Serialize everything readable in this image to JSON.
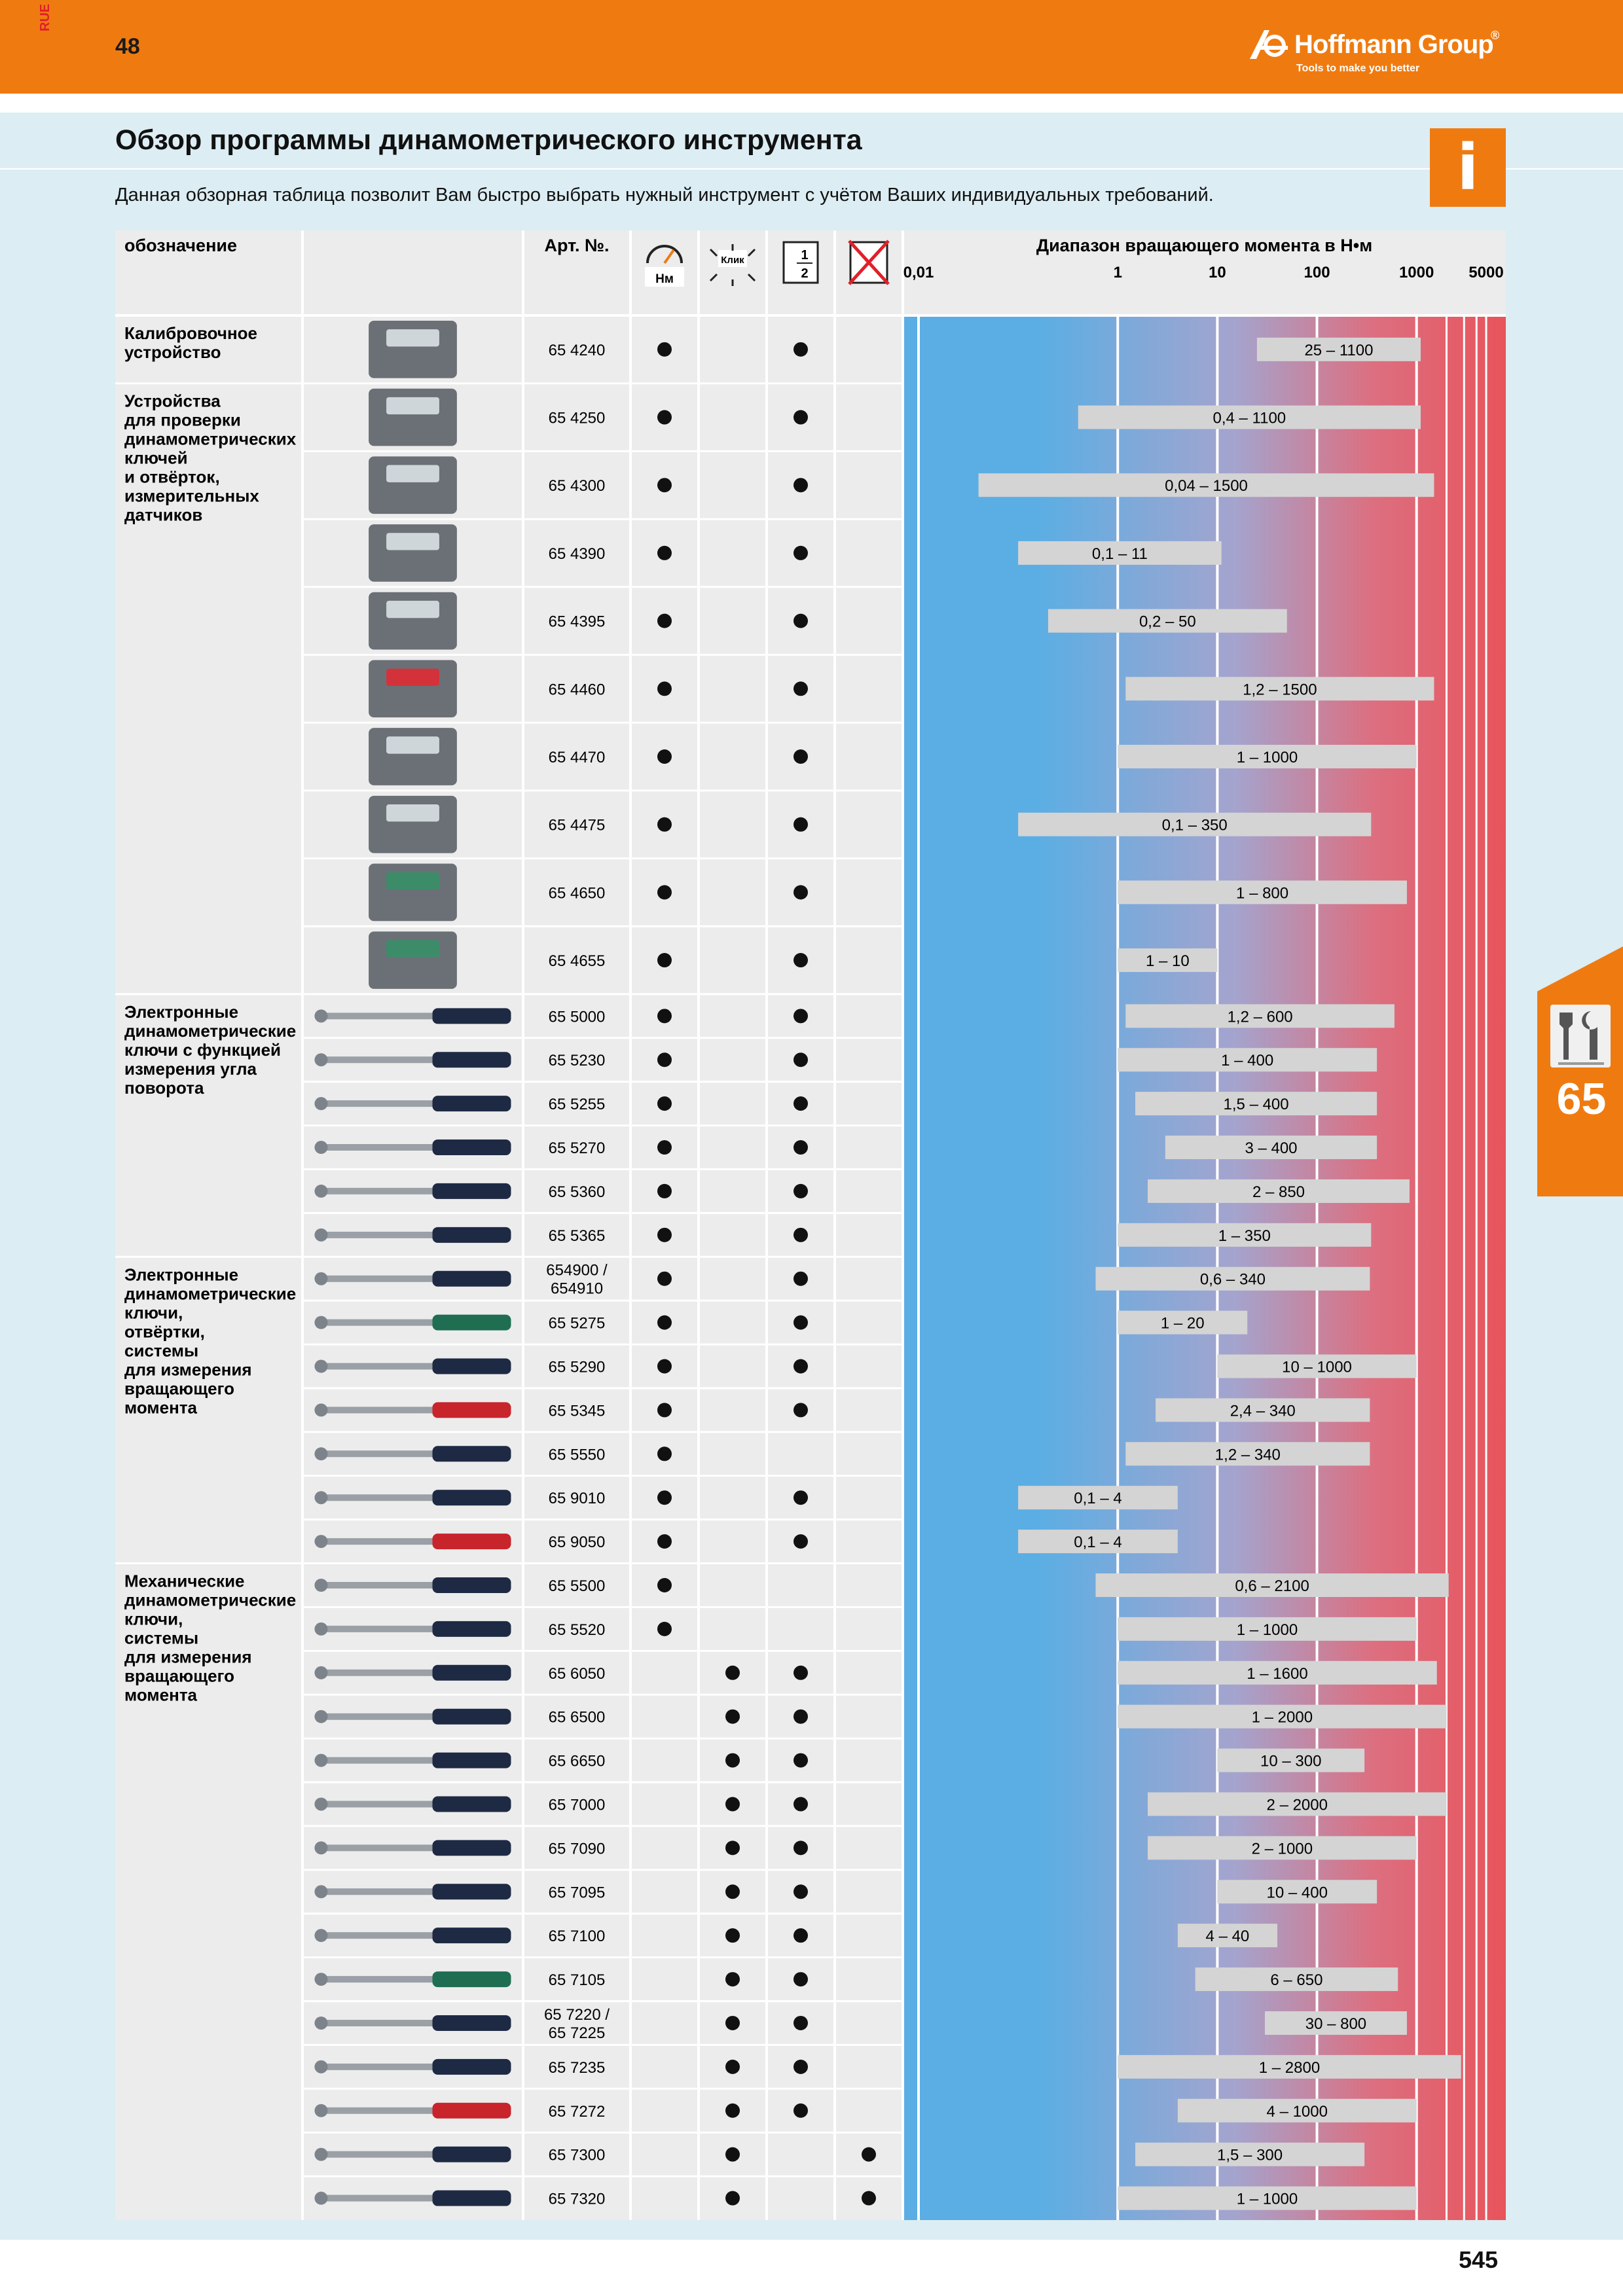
{
  "header": {
    "lang": "RUE",
    "page_left": "48",
    "brand": "Hoffmann Group",
    "brand_mark": "®",
    "tagline": "Tools to make you better"
  },
  "title": "Обзор программы динамометрического инструмента",
  "subtitle": "Данная обзорная таблица позволит Вам быстро выбрать нужный инструмент с учётом Ваших индивидуальных требований.",
  "info_icon": "i",
  "side_tab": {
    "number": "65",
    "icon": "wrench-screwdriver-icon"
  },
  "page_number": "545",
  "colors": {
    "orange": "#ef7b10",
    "band": "#dcedf3",
    "blue": "#5aaee4",
    "red": "#e8545b",
    "bar": "#d4d4d4"
  },
  "table": {
    "headers": {
      "name": "обозначение",
      "art": "Арт. №.",
      "icon_nm": "Нм",
      "icon_click": "Клик",
      "icon_half_top": "1",
      "icon_half_bottom": "2",
      "range_title": "Диапазон вращающего момента в Н•м",
      "scale": [
        "0,01",
        "1",
        "10",
        "100",
        "1000",
        "5000"
      ]
    },
    "icons": [
      "gauge-icon",
      "click-icon",
      "half-icon",
      "no-ratchet-icon"
    ],
    "groups": [
      {
        "label": [
          "Калибровочное",
          "устройство"
        ],
        "first": 0,
        "count": 1
      },
      {
        "label": [
          "Устройства",
          "для проверки",
          "динамометрических",
          "ключей",
          "и отвёрток,",
          "измерительных",
          "датчиков"
        ],
        "first": 1,
        "count": 9
      },
      {
        "label": [
          "Электронные",
          "динамометрические",
          "ключи с функцией",
          "измерения угла",
          "поворота"
        ],
        "first": 10,
        "count": 6
      },
      {
        "label": [
          "Электронные",
          "динамометрические",
          "ключи,",
          "отвёртки,",
          " системы",
          "для измерения",
          "вращающего",
          "момента"
        ],
        "first": 16,
        "count": 7
      },
      {
        "label": [
          "Механические",
          "динамометрические",
          "ключи,",
          "системы",
          "для измерения",
          "вращающего",
          "момента"
        ],
        "first": 23,
        "count": 15
      }
    ],
    "rows": [
      {
        "art": [
          "65 4240"
        ],
        "c": [
          1,
          0,
          1,
          0
        ],
        "min": 25,
        "max": 1100,
        "label": "25 – 1100",
        "img": "calibration-device"
      },
      {
        "art": [
          "65 4250"
        ],
        "c": [
          1,
          0,
          1,
          0
        ],
        "min": 0.4,
        "max": 1100,
        "label": "0,4 – 1100",
        "img": "tester"
      },
      {
        "art": [
          "65 4300"
        ],
        "c": [
          1,
          0,
          1,
          0
        ],
        "min": 0.04,
        "max": 1500,
        "label": "0,04 – 1500",
        "img": "tester"
      },
      {
        "art": [
          "65 4390"
        ],
        "c": [
          1,
          0,
          1,
          0
        ],
        "min": 0.1,
        "max": 11,
        "label": "0,1 – 11",
        "img": "tester"
      },
      {
        "art": [
          "65 4395"
        ],
        "c": [
          1,
          0,
          1,
          0
        ],
        "min": 0.2,
        "max": 50,
        "label": "0,2 – 50",
        "img": "tester"
      },
      {
        "art": [
          "65 4460"
        ],
        "c": [
          1,
          0,
          1,
          0
        ],
        "min": 1.2,
        "max": 1500,
        "label": "1,2 – 1500",
        "img": "tester-red"
      },
      {
        "art": [
          "65 4470"
        ],
        "c": [
          1,
          0,
          1,
          0
        ],
        "min": 1,
        "max": 1000,
        "label": "1 – 1000",
        "img": "sensor"
      },
      {
        "art": [
          "65 4475"
        ],
        "c": [
          1,
          0,
          1,
          0
        ],
        "min": 0.1,
        "max": 350,
        "label": "0,1 – 350",
        "img": "sensor"
      },
      {
        "art": [
          "65 4650"
        ],
        "c": [
          1,
          0,
          1,
          0
        ],
        "min": 1,
        "max": 800,
        "label": "1 – 800",
        "img": "sensor-green"
      },
      {
        "art": [
          "65 4655"
        ],
        "c": [
          1,
          0,
          1,
          0
        ],
        "min": 1,
        "max": 10,
        "label": "1 – 10",
        "img": "sensor-green"
      },
      {
        "art": [
          "65 5000"
        ],
        "c": [
          1,
          0,
          1,
          0
        ],
        "min": 1.2,
        "max": 600,
        "label": "1,2 – 600",
        "img": "wrench-el"
      },
      {
        "art": [
          "65 5230"
        ],
        "c": [
          1,
          0,
          1,
          0
        ],
        "min": 1,
        "max": 400,
        "label": "1 – 400",
        "img": "wrench"
      },
      {
        "art": [
          "65 5255"
        ],
        "c": [
          1,
          0,
          1,
          0
        ],
        "min": 1.5,
        "max": 400,
        "label": "1,5 – 400",
        "img": "wrench"
      },
      {
        "art": [
          "65 5270"
        ],
        "c": [
          1,
          0,
          1,
          0
        ],
        "min": 3,
        "max": 400,
        "label": "3 – 400",
        "img": "wrench"
      },
      {
        "art": [
          "65 5360"
        ],
        "c": [
          1,
          0,
          1,
          0
        ],
        "min": 2,
        "max": 850,
        "label": "2 – 850",
        "img": "wrench"
      },
      {
        "art": [
          "65 5365"
        ],
        "c": [
          1,
          0,
          1,
          0
        ],
        "min": 1,
        "max": 350,
        "label": "1 – 350",
        "img": "wrench"
      },
      {
        "art": [
          "654900 /",
          "654910"
        ],
        "c": [
          1,
          0,
          1,
          0
        ],
        "min": 0.6,
        "max": 340,
        "label": "0,6 – 340",
        "img": "system"
      },
      {
        "art": [
          "65 5275"
        ],
        "c": [
          1,
          0,
          1,
          0
        ],
        "min": 1,
        "max": 20,
        "label": "1 – 20",
        "img": "wrench-green"
      },
      {
        "art": [
          "65 5290"
        ],
        "c": [
          1,
          0,
          1,
          0
        ],
        "min": 10,
        "max": 1000,
        "label": "10 – 1000",
        "img": "wrench"
      },
      {
        "art": [
          "65 5345"
        ],
        "c": [
          1,
          0,
          1,
          0
        ],
        "min": 2.4,
        "max": 340,
        "label": "2,4 – 340",
        "img": "wrench-red"
      },
      {
        "art": [
          "65 5550"
        ],
        "c": [
          1,
          0,
          0,
          0
        ],
        "min": 1.2,
        "max": 340,
        "label": "1,2 – 340",
        "img": "wrench"
      },
      {
        "art": [
          "65 9010"
        ],
        "c": [
          1,
          0,
          1,
          0
        ],
        "min": 0.1,
        "max": 4,
        "label": "0,1 – 4",
        "img": "screwdriver"
      },
      {
        "art": [
          "65 9050"
        ],
        "c": [
          1,
          0,
          1,
          0
        ],
        "min": 0.1,
        "max": 4,
        "label": "0,1 – 4",
        "img": "screwdriver-red"
      },
      {
        "art": [
          "65 5500"
        ],
        "c": [
          1,
          0,
          0,
          0
        ],
        "min": 0.6,
        "max": 2100,
        "label": "0,6 – 2100",
        "img": "wrench-dial"
      },
      {
        "art": [
          "65 5520"
        ],
        "c": [
          1,
          0,
          0,
          0
        ],
        "min": 1,
        "max": 1000,
        "label": "1 – 1000",
        "img": "wrench-dial"
      },
      {
        "art": [
          "65 6050"
        ],
        "c": [
          0,
          1,
          1,
          0
        ],
        "min": 1,
        "max": 1600,
        "label": "1 – 1600",
        "img": "wrench"
      },
      {
        "art": [
          "65 6500"
        ],
        "c": [
          0,
          1,
          1,
          0
        ],
        "min": 1,
        "max": 2000,
        "label": "1 – 2000",
        "img": "wrench"
      },
      {
        "art": [
          "65 6650"
        ],
        "c": [
          0,
          1,
          1,
          0
        ],
        "min": 10,
        "max": 300,
        "label": "10 – 300",
        "img": "wrench"
      },
      {
        "art": [
          "65 7000"
        ],
        "c": [
          0,
          1,
          1,
          0
        ],
        "min": 2,
        "max": 2000,
        "label": "2 – 2000",
        "img": "wrench-silver"
      },
      {
        "art": [
          "65 7090"
        ],
        "c": [
          0,
          1,
          1,
          0
        ],
        "min": 2,
        "max": 1000,
        "label": "2 – 1000",
        "img": "wrench"
      },
      {
        "art": [
          "65 7095"
        ],
        "c": [
          0,
          1,
          1,
          0
        ],
        "min": 10,
        "max": 400,
        "label": "10 – 400",
        "img": "wrench"
      },
      {
        "art": [
          "65 7100"
        ],
        "c": [
          0,
          1,
          1,
          0
        ],
        "min": 4,
        "max": 40,
        "label": "4 – 40",
        "img": "wrench-case"
      },
      {
        "art": [
          "65 7105"
        ],
        "c": [
          0,
          1,
          1,
          0
        ],
        "min": 6,
        "max": 650,
        "label": "6 – 650",
        "img": "wrench-green"
      },
      {
        "art": [
          "65 7220 /",
          "65 7225"
        ],
        "c": [
          0,
          1,
          1,
          0
        ],
        "min": 30,
        "max": 800,
        "label": "30 – 800",
        "img": "wrench"
      },
      {
        "art": [
          "65 7235"
        ],
        "c": [
          0,
          1,
          1,
          0
        ],
        "min": 1,
        "max": 2800,
        "label": "1 – 2800",
        "img": "wrench"
      },
      {
        "art": [
          "65 7272"
        ],
        "c": [
          0,
          1,
          1,
          0
        ],
        "min": 4,
        "max": 1000,
        "label": "4 – 1000",
        "img": "wrench-red"
      },
      {
        "art": [
          "65 7300"
        ],
        "c": [
          0,
          1,
          0,
          1
        ],
        "min": 1.5,
        "max": 300,
        "label": "1,5 – 300",
        "img": "wrench"
      },
      {
        "art": [
          "65 7320"
        ],
        "c": [
          0,
          1,
          0,
          1
        ],
        "min": 1,
        "max": 1000,
        "label": "1 – 1000",
        "img": "wrench"
      }
    ]
  }
}
